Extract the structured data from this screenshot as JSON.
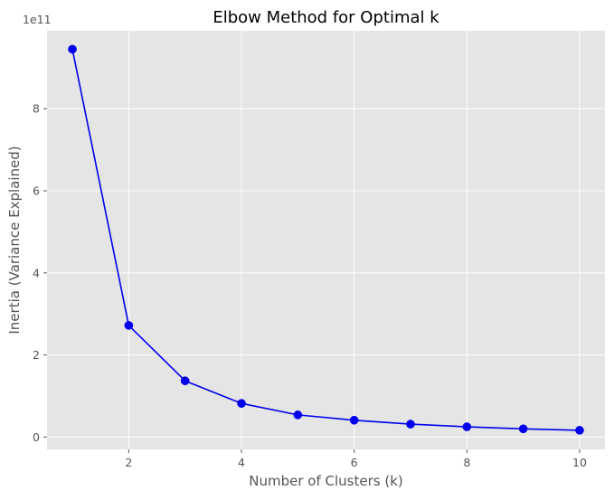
{
  "chart_data": {
    "type": "line",
    "title": "Elbow Method for Optimal k",
    "xlabel": "Number of Clusters (k)",
    "ylabel": "Inertia (Variance Explained)",
    "y_offset_label": "1e11",
    "x": [
      1,
      2,
      3,
      4,
      5,
      6,
      7,
      8,
      9,
      10
    ],
    "series": [
      {
        "values": [
          945000000000,
          272000000000,
          137000000000,
          82000000000,
          54000000000,
          41000000000,
          31500000000,
          25000000000,
          20000000000,
          16500000000
        ],
        "color": "#0000ee",
        "marker": "circle"
      }
    ],
    "xlim": [
      0.55,
      10.45
    ],
    "ylim": [
      -30000000000,
      990000000000
    ],
    "xticks": [
      2,
      4,
      6,
      8,
      10
    ],
    "xtick_labels": [
      "2",
      "4",
      "6",
      "8",
      "10"
    ],
    "yticks": [
      0,
      200000000000,
      400000000000,
      600000000000,
      800000000000
    ],
    "ytick_labels": [
      "0",
      "2",
      "4",
      "6",
      "8"
    ],
    "grid": true,
    "style": "ggplot",
    "background_color": "#e5e5e5",
    "grid_color": "#ffffff"
  }
}
